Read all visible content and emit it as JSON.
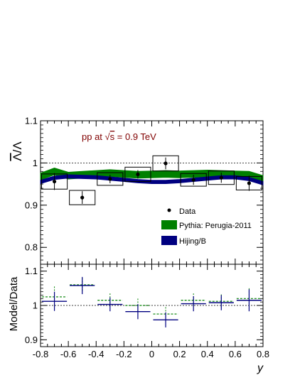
{
  "chart_data": {
    "type": "scatter",
    "x_label": "y",
    "xlim": [
      -0.8,
      0.8
    ],
    "x_ticks": [
      "-0.8",
      "-0.6",
      "-0.4",
      "-0.2",
      "0",
      "0.2",
      "0.4",
      "0.6",
      "0.8"
    ],
    "annotation": {
      "prefix": "pp at ",
      "sqrt": "√",
      "s": "s",
      "suffix": " = 0.9 TeV"
    },
    "colors": {
      "data": "#000000",
      "pythia": "#008000",
      "hijing": "#000080",
      "annotation": "#800000"
    },
    "top": {
      "y_label": "Λ̅/Λ",
      "y_label_numerator": "Λ",
      "y_label_rest": "/Λ",
      "ylim": [
        0.76,
        1.1
      ],
      "y_ticks": [
        "0.8",
        "0.9",
        "1",
        "1.1"
      ],
      "reference_line": 1.0,
      "data": {
        "name": "Data",
        "x": [
          -0.7,
          -0.5,
          -0.3,
          -0.1,
          0.1,
          0.3,
          0.5,
          0.7
        ],
        "x_halfwidth": 0.1,
        "y": [
          0.956,
          0.918,
          0.962,
          0.973,
          0.999,
          0.96,
          0.965,
          0.952
        ],
        "stat_err": [
          0.02,
          0.015,
          0.01,
          0.01,
          0.014,
          0.012,
          0.012,
          0.018
        ],
        "syst_err": [
          0.018,
          0.017,
          0.015,
          0.017,
          0.018,
          0.015,
          0.016,
          0.016
        ]
      },
      "pythia": {
        "name": "Pythia: Perugia-2011",
        "x": [
          -0.8,
          -0.7,
          -0.6,
          -0.5,
          -0.4,
          -0.3,
          -0.2,
          -0.1,
          0.0,
          0.1,
          0.2,
          0.3,
          0.4,
          0.5,
          0.6,
          0.7,
          0.8
        ],
        "y": [
          0.968,
          0.98,
          0.97,
          0.972,
          0.974,
          0.976,
          0.974,
          0.972,
          0.973,
          0.974,
          0.973,
          0.974,
          0.975,
          0.974,
          0.973,
          0.972,
          0.962
        ],
        "band_halfwidth": 0.008
      },
      "hijing": {
        "name": "Hijing/B",
        "x": [
          -0.8,
          -0.7,
          -0.6,
          -0.5,
          -0.4,
          -0.3,
          -0.2,
          -0.1,
          0.0,
          0.1,
          0.2,
          0.3,
          0.4,
          0.5,
          0.6,
          0.7,
          0.8
        ],
        "y": [
          0.955,
          0.965,
          0.968,
          0.967,
          0.966,
          0.963,
          0.96,
          0.957,
          0.955,
          0.955,
          0.957,
          0.96,
          0.963,
          0.966,
          0.966,
          0.962,
          0.952
        ],
        "band_halfwidth": 0.004
      },
      "legend": {
        "position": "bottom-right"
      }
    },
    "bottom": {
      "y_label": "Model/Data",
      "ylim": [
        0.88,
        1.12
      ],
      "y_ticks": [
        "0.9",
        "1",
        "1.1"
      ],
      "reference_line": 1.0,
      "pythia_ratio": {
        "x": [
          -0.7,
          -0.5,
          -0.3,
          -0.1,
          0.1,
          0.3,
          0.5,
          0.7
        ],
        "y": [
          1.025,
          1.06,
          1.015,
          1.0,
          0.975,
          1.015,
          1.012,
          1.02
        ],
        "err": [
          0.03,
          0.02,
          0.02,
          0.02,
          0.02,
          0.02,
          0.02,
          0.03
        ]
      },
      "hijing_ratio": {
        "x": [
          -0.7,
          -0.5,
          -0.3,
          -0.1,
          0.1,
          0.3,
          0.5,
          0.7
        ],
        "y": [
          1.012,
          1.058,
          1.003,
          0.982,
          0.958,
          1.005,
          1.008,
          1.015
        ],
        "err": [
          0.028,
          0.025,
          0.02,
          0.022,
          0.022,
          0.022,
          0.022,
          0.032
        ]
      }
    }
  }
}
